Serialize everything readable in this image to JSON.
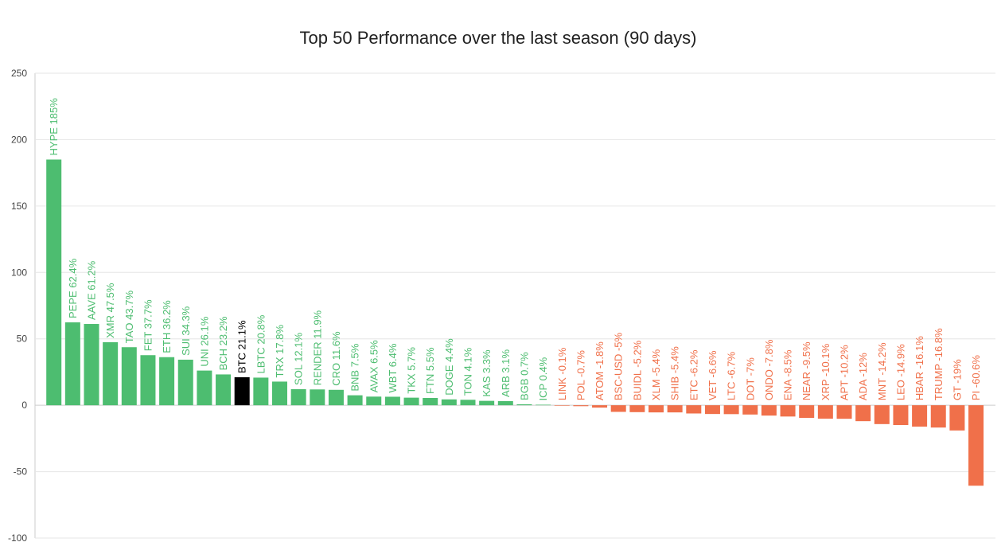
{
  "chart_data": {
    "type": "bar",
    "title": "Top 50 Performance over the last season (90 days)",
    "xlabel": "",
    "ylabel": "",
    "ylim": [
      -100,
      250
    ],
    "yticks": [
      250,
      200,
      150,
      100,
      50,
      0,
      -50,
      -100
    ],
    "grid": true,
    "legend": "none",
    "colors": {
      "positive": "#4dbd70",
      "negative": "#f0704a",
      "highlight": "#000000"
    },
    "highlight_category": "BTC",
    "bars": [
      {
        "category": "HYPE",
        "value": 185,
        "label": "HYPE 185%"
      },
      {
        "category": "PEPE",
        "value": 62.4,
        "label": "PEPE 62.4%"
      },
      {
        "category": "AAVE",
        "value": 61.2,
        "label": "AAVE 61.2%"
      },
      {
        "category": "XMR",
        "value": 47.5,
        "label": "XMR 47.5%"
      },
      {
        "category": "TAO",
        "value": 43.7,
        "label": "TAO 43.7%"
      },
      {
        "category": "FET",
        "value": 37.7,
        "label": "FET 37.7%"
      },
      {
        "category": "ETH",
        "value": 36.2,
        "label": "ETH 36.2%"
      },
      {
        "category": "SUI",
        "value": 34.3,
        "label": "SUI 34.3%"
      },
      {
        "category": "UNI",
        "value": 26.1,
        "label": "UNI 26.1%"
      },
      {
        "category": "BCH",
        "value": 23.2,
        "label": "BCH 23.2%"
      },
      {
        "category": "BTC",
        "value": 21.1,
        "label": "BTC 21.1%"
      },
      {
        "category": "LBTC",
        "value": 20.8,
        "label": "LBTC 20.8%"
      },
      {
        "category": "TRX",
        "value": 17.8,
        "label": "TRX 17.8%"
      },
      {
        "category": "SOL",
        "value": 12.1,
        "label": "SOL 12.1%"
      },
      {
        "category": "RENDER",
        "value": 11.9,
        "label": "RENDER 11.9%"
      },
      {
        "category": "CRO",
        "value": 11.6,
        "label": "CRO 11.6%"
      },
      {
        "category": "BNB",
        "value": 7.5,
        "label": "BNB 7.5%"
      },
      {
        "category": "AVAX",
        "value": 6.5,
        "label": "AVAX 6.5%"
      },
      {
        "category": "WBT",
        "value": 6.4,
        "label": "WBT 6.4%"
      },
      {
        "category": "TKX",
        "value": 5.7,
        "label": "TKX 5.7%"
      },
      {
        "category": "FTN",
        "value": 5.5,
        "label": "FTN 5.5%"
      },
      {
        "category": "DOGE",
        "value": 4.4,
        "label": "DOGE 4.4%"
      },
      {
        "category": "TON",
        "value": 4.1,
        "label": "TON 4.1%"
      },
      {
        "category": "KAS",
        "value": 3.3,
        "label": "KAS 3.3%"
      },
      {
        "category": "ARB",
        "value": 3.1,
        "label": "ARB 3.1%"
      },
      {
        "category": "BGB",
        "value": 0.7,
        "label": "BGB 0.7%"
      },
      {
        "category": "ICP",
        "value": 0.4,
        "label": "ICP 0.4%"
      },
      {
        "category": "LINK",
        "value": -0.1,
        "label": "LINK -0.1%"
      },
      {
        "category": "POL",
        "value": -0.7,
        "label": "POL -0.7%"
      },
      {
        "category": "ATOM",
        "value": -1.8,
        "label": "ATOM -1.8%"
      },
      {
        "category": "BSC-USD",
        "value": -5,
        "label": "BSC-USD -5%"
      },
      {
        "category": "BUIDL",
        "value": -5.2,
        "label": "BUIDL -5.2%"
      },
      {
        "category": "XLM",
        "value": -5.4,
        "label": "XLM -5.4%"
      },
      {
        "category": "SHIB",
        "value": -5.4,
        "label": "SHIB -5.4%"
      },
      {
        "category": "ETC",
        "value": -6.2,
        "label": "ETC -6.2%"
      },
      {
        "category": "VET",
        "value": -6.6,
        "label": "VET -6.6%"
      },
      {
        "category": "LTC",
        "value": -6.7,
        "label": "LTC -6.7%"
      },
      {
        "category": "DOT",
        "value": -7,
        "label": "DOT -7%"
      },
      {
        "category": "ONDO",
        "value": -7.8,
        "label": "ONDO -7.8%"
      },
      {
        "category": "ENA",
        "value": -8.5,
        "label": "ENA -8.5%"
      },
      {
        "category": "NEAR",
        "value": -9.5,
        "label": "NEAR -9.5%"
      },
      {
        "category": "XRP",
        "value": -10.1,
        "label": "XRP -10.1%"
      },
      {
        "category": "APT",
        "value": -10.2,
        "label": "APT -10.2%"
      },
      {
        "category": "ADA",
        "value": -12,
        "label": "ADA -12%"
      },
      {
        "category": "MNT",
        "value": -14.2,
        "label": "MNT -14.2%"
      },
      {
        "category": "LEO",
        "value": -14.9,
        "label": "LEO -14.9%"
      },
      {
        "category": "HBAR",
        "value": -16.1,
        "label": "HBAR -16.1%"
      },
      {
        "category": "TRUMP",
        "value": -16.8,
        "label": "TRUMP -16.8%"
      },
      {
        "category": "GT",
        "value": -19,
        "label": "GT -19%"
      },
      {
        "category": "PI",
        "value": -60.6,
        "label": "PI -60.6%"
      }
    ]
  }
}
